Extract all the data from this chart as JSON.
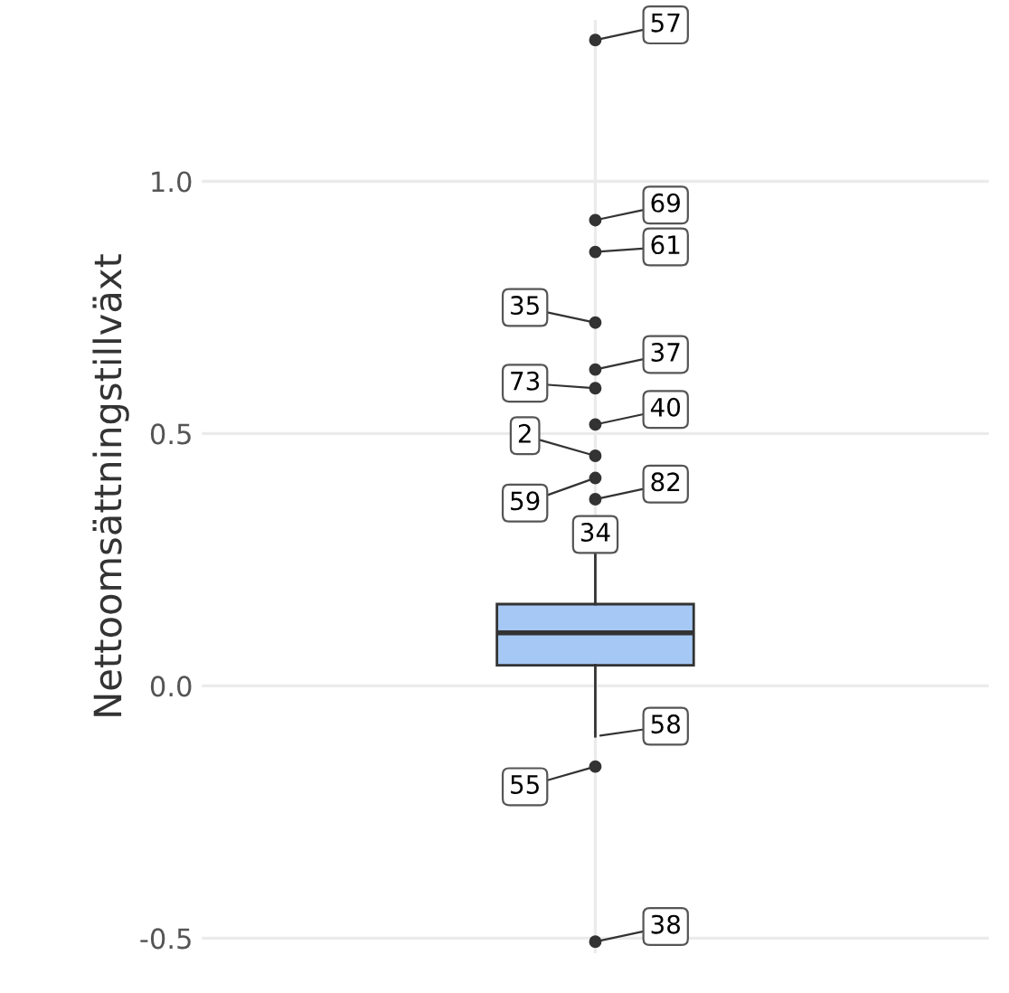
{
  "chart_data": {
    "type": "box",
    "ylabel": "Nettoomsättningstillväxt",
    "categories": [
      null
    ],
    "boxes": [
      {
        "low": -0.1,
        "q1": 0.041,
        "median": 0.105,
        "q3": 0.162,
        "high": 0.33,
        "outliers": [
          1.28,
          0.923,
          0.86,
          0.72,
          0.627,
          0.59,
          0.518,
          0.456,
          0.412,
          0.37,
          -0.16,
          -0.507
        ]
      }
    ],
    "colors": [
      "#a6c8f5"
    ],
    "ylim": [
      -0.53,
      1.32
    ],
    "yticks": [
      {
        "value": -0.5,
        "label": "-0.5"
      },
      {
        "value": 0.0,
        "label": "0.0"
      },
      {
        "value": 0.5,
        "label": "0.5"
      },
      {
        "value": 1.0,
        "label": "1.0"
      }
    ],
    "grid": "y",
    "annotations": [
      "57",
      "69",
      "61",
      "35",
      "37",
      "73",
      "40",
      "2",
      "59",
      "82",
      "55",
      "38",
      "34",
      "58"
    ]
  }
}
